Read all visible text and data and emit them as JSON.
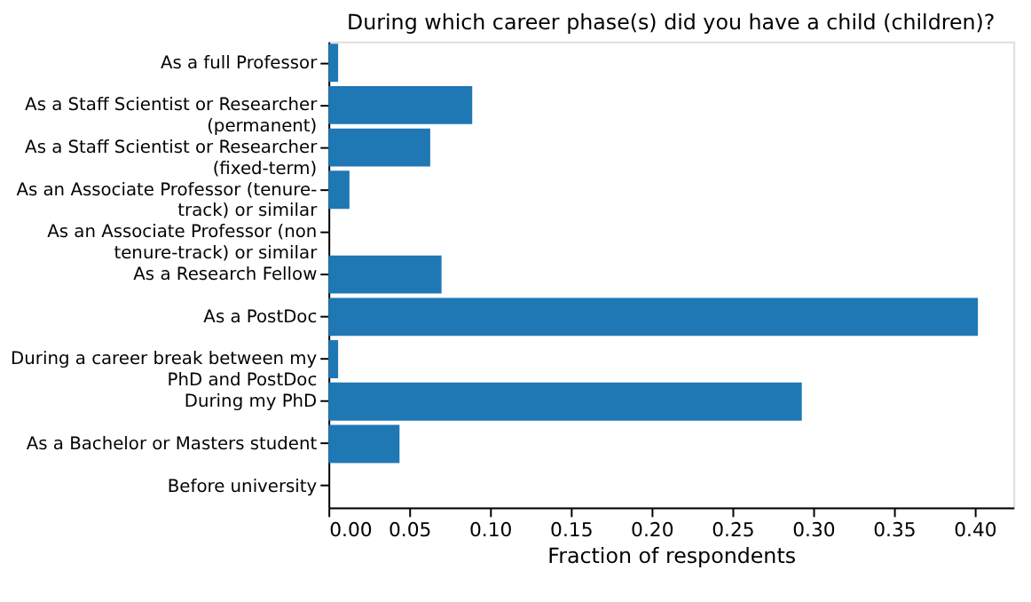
{
  "chart_data": {
    "type": "bar",
    "orientation": "horizontal",
    "title": "During which career phase(s) did you have a child (children)?",
    "xlabel": "Fraction of respondents",
    "categories": [
      "As a full Professor",
      "As a Staff Scientist or Researcher\n(permanent)",
      "As a Staff Scientist or Researcher\n(fixed-term)",
      "As an Associate Professor (tenure-\ntrack) or similar",
      "As an Associate Professor (non\ntenure-track) or similar",
      "As a Research Fellow",
      "As a PostDoc",
      "During a career break between my\nPhD and PostDoc",
      "During my PhD",
      "As a Bachelor or Masters student",
      "Before university"
    ],
    "values": [
      0.006,
      0.089,
      0.063,
      0.013,
      0,
      0.07,
      0.402,
      0.006,
      0.293,
      0.044,
      0
    ],
    "color": "#1f77b4",
    "xlim": [
      0,
      0.424
    ],
    "xticks": [
      {
        "value": 0,
        "label": "0.00"
      },
      0.05,
      {
        "value": 0.1,
        "label": "0.10"
      },
      0.15,
      {
        "value": 0.2,
        "label": "0.20"
      },
      0.25,
      {
        "value": 0.3,
        "label": "0.30"
      },
      0.35,
      {
        "value": 0.4,
        "label": "0.40"
      }
    ],
    "grid": false
  }
}
